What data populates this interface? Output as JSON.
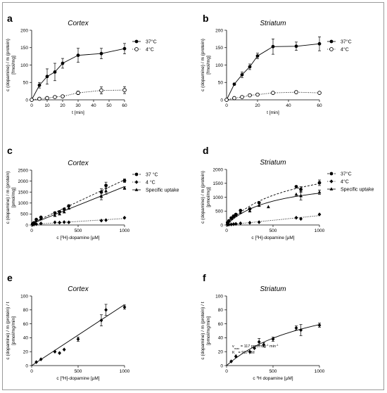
{
  "panels": [
    {
      "id": "a",
      "letter": "a",
      "title": "Cortex",
      "xlabel": "t [min]",
      "ylabel_lines": [
        "c (dopamine) / m (protein)",
        "[fmol/mg]"
      ],
      "xlim": [
        0,
        60
      ],
      "ylim": [
        0,
        200
      ],
      "xticks": [
        0,
        10,
        20,
        30,
        40,
        50,
        60
      ],
      "yticks": [
        0,
        50,
        100,
        150,
        200
      ],
      "legend": [
        "37°C",
        "4°C"
      ]
    },
    {
      "id": "b",
      "letter": "b",
      "title": "Striatum",
      "xlabel": "t [min]",
      "ylabel_lines": [
        "c (dopamine) / m (protein)",
        "[fmol/mg]"
      ],
      "xlim": [
        0,
        60
      ],
      "ylim": [
        0,
        200
      ],
      "xticks": [
        0,
        20,
        40,
        60
      ],
      "yticks": [
        0,
        50,
        100,
        150,
        200
      ],
      "legend": [
        "37°C",
        "4°C"
      ]
    },
    {
      "id": "c",
      "letter": "c",
      "title": "Cortex",
      "xlabel_parts": [
        "c [",
        "3",
        "H]-dopamine [µM]"
      ],
      "ylabel_lines": [
        "c (dopamine) / m (protein)",
        "[pmol/mg]"
      ],
      "xlim": [
        0,
        1000
      ],
      "ylim": [
        0,
        2500
      ],
      "xticks": [
        0,
        500,
        1000
      ],
      "yticks": [
        0,
        500,
        1000,
        1500,
        2000,
        2500
      ],
      "legend": [
        "37 °C",
        "4 °C",
        "Specific uptake"
      ]
    },
    {
      "id": "d",
      "letter": "d",
      "title": "Striatum",
      "xlabel_parts": [
        "c [",
        "3",
        "H]-dopamine [µM]"
      ],
      "ylabel_lines": [
        "c (dopamine) / m (protein)",
        "[pmol/mg]"
      ],
      "xlim": [
        0,
        1000
      ],
      "ylim": [
        0,
        2000
      ],
      "xticks": [
        0,
        500,
        1000
      ],
      "yticks": [
        0,
        500,
        1000,
        1500,
        2000
      ],
      "legend": [
        "37°C",
        "4°C",
        "Specific uptake"
      ]
    },
    {
      "id": "e",
      "letter": "e",
      "title": "Cortex",
      "xlabel_parts": [
        "c [",
        "3",
        "H]-dopamine [µM]"
      ],
      "ylabel_lines": [
        "c (dopamine) / m (protein) / t",
        "[pmol/mg/min]"
      ],
      "xlim": [
        0,
        1000
      ],
      "ylim": [
        0,
        100
      ],
      "xticks": [
        0,
        500,
        1000
      ],
      "yticks": [
        0,
        20,
        40,
        60,
        80,
        100
      ],
      "legend": []
    },
    {
      "id": "f",
      "letter": "f",
      "title": "Striatum",
      "xlabel_parts": [
        "c ",
        "3",
        "H dopamine [µM]"
      ],
      "ylabel_lines": [
        "c (dopamine) / m (protein) / t",
        "[pmol/mg/min]"
      ],
      "xlim": [
        0,
        1000
      ],
      "ylim": [
        0,
        100
      ],
      "xticks": [
        0,
        500,
        1000
      ],
      "yticks": [
        0,
        20,
        40,
        60,
        80,
        100
      ],
      "legend": [],
      "annotation_lines": [
        [
          "v",
          "max",
          " = 117 pmol mg",
          "-1",
          " min",
          "-1"
        ],
        [
          "K",
          "m",
          " = 987 µM",
          "",
          "",
          ""
        ]
      ]
    }
  ],
  "chart_data": [
    {
      "panel": "a",
      "type": "line",
      "title": "Cortex",
      "xlabel": "t [min]",
      "ylabel": "c (dopamine) / m (protein) [fmol/mg]",
      "xlim": [
        0,
        60
      ],
      "ylim": [
        0,
        200
      ],
      "grid": false,
      "legend_position": "right",
      "series": [
        {
          "name": "37°C",
          "marker": "circle-filled",
          "line": "solid",
          "x": [
            0,
            5,
            10,
            15,
            20,
            30,
            45,
            60
          ],
          "y": [
            0,
            42,
            67,
            80,
            105,
            128,
            133,
            147
          ],
          "err": [
            0,
            8,
            22,
            25,
            14,
            20,
            15,
            15
          ]
        },
        {
          "name": "4°C",
          "marker": "circle-open",
          "line": "dotted",
          "x": [
            0,
            5,
            10,
            15,
            20,
            30,
            45,
            60
          ],
          "y": [
            0,
            3,
            5,
            8,
            10,
            20,
            27,
            28
          ],
          "err": [
            0,
            2,
            3,
            3,
            3,
            5,
            10,
            10
          ]
        }
      ]
    },
    {
      "panel": "b",
      "type": "line",
      "title": "Striatum",
      "xlabel": "t [min]",
      "ylabel": "c (dopamine) / m (protein) [fmol/mg]",
      "xlim": [
        0,
        60
      ],
      "ylim": [
        0,
        200
      ],
      "grid": false,
      "legend_position": "right",
      "series": [
        {
          "name": "37°C",
          "marker": "circle-filled",
          "line": "solid",
          "x": [
            0,
            5,
            10,
            15,
            20,
            30,
            45,
            60
          ],
          "y": [
            0,
            45,
            72,
            95,
            126,
            153,
            154,
            161
          ],
          "err": [
            0,
            3,
            8,
            8,
            8,
            22,
            12,
            20
          ]
        },
        {
          "name": "4°C",
          "marker": "circle-open",
          "line": "dotted",
          "x": [
            0,
            5,
            10,
            15,
            20,
            30,
            45,
            60
          ],
          "y": [
            0,
            5,
            8,
            13,
            15,
            20,
            22,
            20
          ],
          "err": [
            0,
            2,
            2,
            2,
            2,
            4,
            4,
            3
          ]
        }
      ]
    },
    {
      "panel": "c",
      "type": "scatter",
      "title": "Cortex",
      "xlabel": "c [3H]-dopamine [µM]",
      "ylabel": "c (dopamine) / m (protein) [pmol/mg]",
      "xlim": [
        0,
        1000
      ],
      "ylim": [
        0,
        2500
      ],
      "grid": false,
      "legend_position": "right",
      "series": [
        {
          "name": "37 °C",
          "marker": "circle-filled",
          "fit": "linear-dashed",
          "x": [
            10,
            25,
            50,
            100,
            250,
            300,
            350,
            400,
            750,
            800,
            1000
          ],
          "y": [
            50,
            100,
            250,
            350,
            550,
            600,
            720,
            870,
            1500,
            1800,
            2020
          ],
          "err": [
            0,
            0,
            0,
            0,
            0,
            0,
            0,
            0,
            150,
            150,
            80
          ]
        },
        {
          "name": "4 °C",
          "marker": "diamond-filled",
          "fit": "linear-dotted",
          "x": [
            10,
            25,
            50,
            100,
            250,
            300,
            350,
            400,
            750,
            800,
            1000
          ],
          "y": [
            15,
            25,
            40,
            70,
            120,
            110,
            130,
            120,
            200,
            220,
            330
          ],
          "err": [
            0,
            0,
            0,
            0,
            0,
            0,
            0,
            0,
            0,
            0,
            0
          ]
        },
        {
          "name": "Specific uptake",
          "marker": "triangle-filled",
          "fit": "linear-solid",
          "x": [
            10,
            25,
            50,
            100,
            250,
            300,
            350,
            400,
            750,
            800,
            1000
          ],
          "y": [
            40,
            80,
            200,
            280,
            430,
            500,
            590,
            760,
            1300,
            1550,
            1680
          ],
          "err": [
            0,
            0,
            0,
            0,
            0,
            0,
            0,
            0,
            150,
            150,
            60
          ]
        }
      ]
    },
    {
      "panel": "d",
      "type": "scatter",
      "title": "Striatum",
      "xlabel": "c [3H]-dopamine [µM]",
      "ylabel": "c (dopamine) / m (protein) [pmol/mg]",
      "xlim": [
        0,
        1000
      ],
      "ylim": [
        0,
        2000
      ],
      "grid": false,
      "legend_position": "right",
      "series": [
        {
          "name": "37°C",
          "marker": "circle-filled",
          "fit": "curve-dashed",
          "x": [
            10,
            25,
            50,
            75,
            100,
            150,
            250,
            350,
            750,
            800,
            1000
          ],
          "y": [
            80,
            150,
            250,
            320,
            380,
            520,
            580,
            800,
            1380,
            1280,
            1520
          ],
          "err": [
            0,
            0,
            0,
            0,
            0,
            0,
            0,
            0,
            0,
            100,
            100
          ]
        },
        {
          "name": "4°C",
          "marker": "diamond-filled",
          "fit": "linear-dotted",
          "x": [
            10,
            25,
            50,
            75,
            100,
            150,
            250,
            350,
            750,
            800,
            1000
          ],
          "y": [
            10,
            15,
            20,
            30,
            40,
            60,
            80,
            100,
            260,
            220,
            380
          ],
          "err": [
            0,
            0,
            0,
            0,
            0,
            0,
            0,
            0,
            0,
            0,
            0
          ]
        },
        {
          "name": "Specific uptake",
          "marker": "triangle-filled",
          "fit": "curve-solid",
          "x": [
            10,
            25,
            50,
            75,
            100,
            150,
            250,
            350,
            450,
            750,
            800,
            1000
          ],
          "y": [
            60,
            130,
            230,
            290,
            350,
            450,
            500,
            700,
            650,
            1100,
            1050,
            1180
          ],
          "err": [
            0,
            0,
            0,
            0,
            0,
            0,
            0,
            0,
            0,
            0,
            150,
            80
          ]
        }
      ]
    },
    {
      "panel": "e",
      "type": "scatter",
      "title": "Cortex",
      "xlabel": "c [3H]-dopamine [µM]",
      "ylabel": "c (dopamine) / m (protein) / t [pmol/mg/min]",
      "xlim": [
        0,
        1000
      ],
      "ylim": [
        0,
        100
      ],
      "grid": false,
      "series": [
        {
          "name": "",
          "marker": "diamond-filled",
          "fit": "linear-solid",
          "x": [
            50,
            100,
            250,
            300,
            350,
            500,
            750,
            800,
            1000
          ],
          "y": [
            5,
            9,
            20,
            18,
            23,
            38,
            65,
            80,
            84
          ],
          "err": [
            0,
            0,
            0,
            0,
            0,
            3,
            8,
            8,
            3
          ]
        }
      ]
    },
    {
      "panel": "f",
      "type": "scatter",
      "title": "Striatum",
      "xlabel": "c 3H dopamine [µM]",
      "ylabel": "c (dopamine) / m (protein) / t [pmol/mg/min]",
      "xlim": [
        0,
        1000
      ],
      "ylim": [
        0,
        100
      ],
      "grid": false,
      "annotations": [
        "vmax = 117 pmol mg-1 min-1",
        "Km = 987 µM"
      ],
      "series": [
        {
          "name": "",
          "marker": "diamond-filled",
          "fit": "michaelis-menten-solid",
          "x": [
            50,
            100,
            250,
            300,
            350,
            400,
            500,
            750,
            800,
            1000
          ],
          "y": [
            6,
            13,
            20,
            25,
            34,
            30,
            38,
            54,
            51,
            58
          ],
          "err": [
            0,
            0,
            0,
            0,
            5,
            3,
            3,
            3,
            8,
            3
          ]
        }
      ]
    }
  ]
}
